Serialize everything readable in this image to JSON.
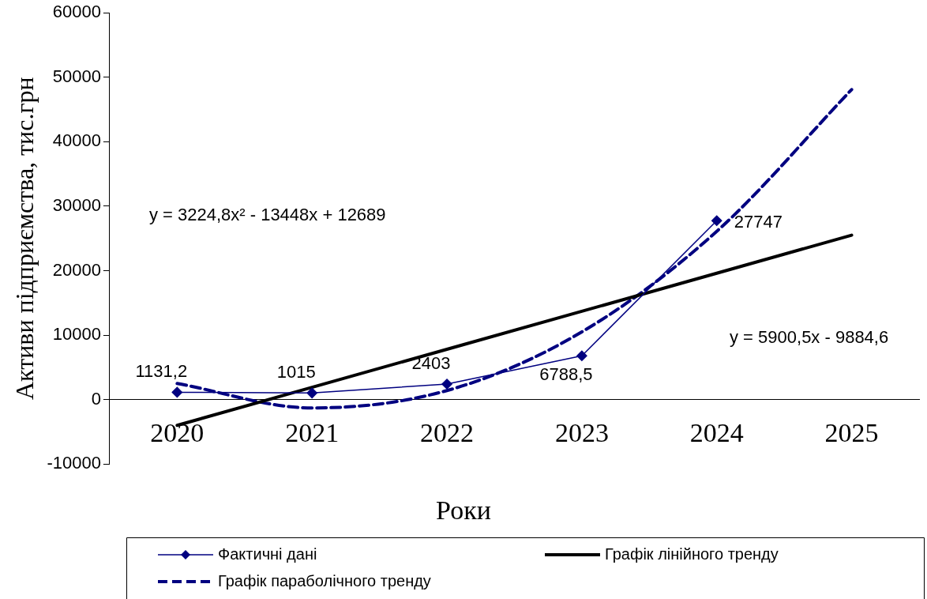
{
  "chart_data": {
    "type": "line",
    "xlabel": "Роки",
    "ylabel": "Активи підприємства, тис.грн",
    "categories": [
      "2020",
      "2021",
      "2022",
      "2023",
      "2024",
      "2025"
    ],
    "ylim": [
      -10000,
      60000
    ],
    "yticks": [
      -10000,
      0,
      10000,
      20000,
      30000,
      40000,
      50000,
      60000
    ],
    "grid": false,
    "legend": "bottom",
    "series": [
      {
        "name": "Фактичні дані",
        "color": "#000080",
        "marker": "diamond",
        "line_style": "solid",
        "values": [
          1131.2,
          1015,
          2403,
          6788.5,
          27747,
          null
        ],
        "value_labels": [
          "1131,2",
          "1015",
          "2403",
          "6788,5",
          "27747",
          null
        ]
      },
      {
        "name": "Графік лінійного тренду",
        "color": "#000000",
        "marker": "none",
        "line_style": "solid",
        "values": [
          -4000,
          1900,
          7800,
          13700,
          19600,
          25500
        ]
      },
      {
        "name": "Графік параболічного тренду",
        "color": "#000080",
        "marker": "none",
        "line_style": "dashed",
        "values": [
          2500,
          -1300,
          1400,
          10500,
          26100,
          48100
        ]
      }
    ],
    "annotations": [
      "y = 3224,8x² - 13448x + 12689",
      "y = 5900,5x - 9884,6"
    ]
  }
}
